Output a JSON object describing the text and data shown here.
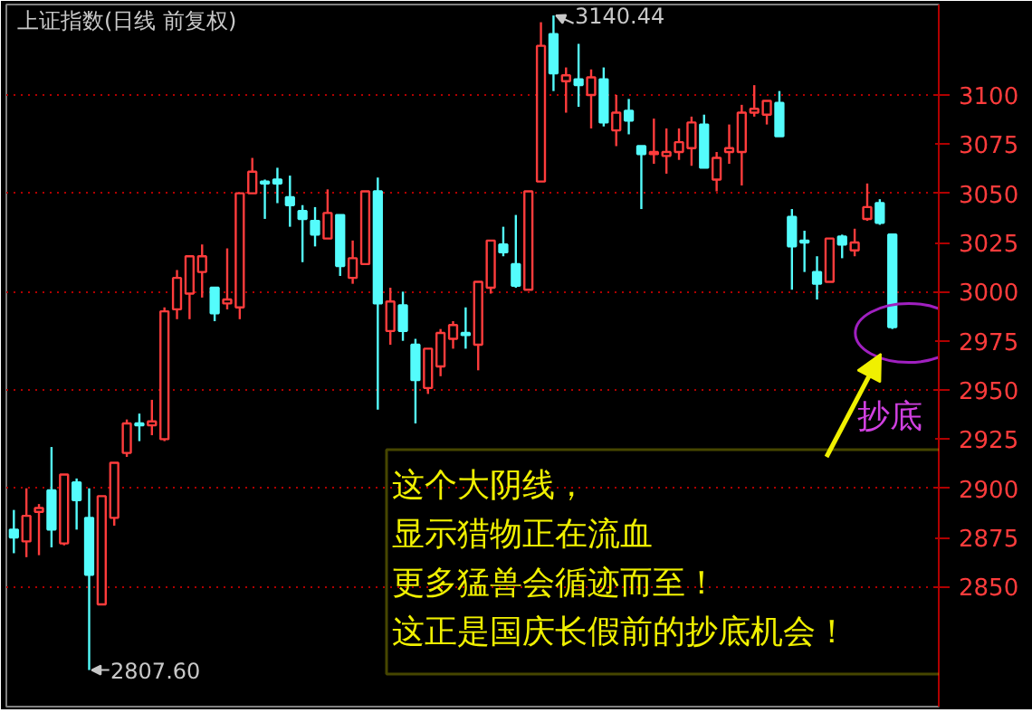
{
  "chart_data": {
    "type": "candlestick",
    "title": "上证指数(日线 前复权)",
    "categories": [
      null,
      null,
      null,
      null,
      null,
      null,
      null,
      null,
      null,
      null,
      null,
      null,
      null,
      null,
      null,
      null,
      null,
      null,
      null,
      null,
      null,
      null,
      null,
      null,
      null,
      null,
      null,
      null,
      null,
      null,
      null,
      null,
      null,
      null,
      null,
      null,
      null,
      null,
      null,
      null,
      null,
      null,
      null,
      null,
      null,
      null,
      null,
      null,
      null,
      null,
      null,
      null,
      null,
      null,
      null,
      null,
      null,
      null,
      null,
      null,
      null,
      null,
      null,
      null,
      null,
      null,
      null,
      null,
      null,
      null,
      null
    ],
    "ohlc": [
      [
        2879,
        2889,
        2867,
        2875
      ],
      [
        2873,
        2900,
        2865,
        2886
      ],
      [
        2888,
        2892,
        2866,
        2890
      ],
      [
        2899,
        2921,
        2870,
        2879
      ],
      [
        2872,
        2907,
        2871,
        2907
      ],
      [
        2903,
        2905,
        2879,
        2894
      ],
      [
        2885,
        2900,
        2807.6,
        2856
      ],
      [
        2841,
        2896,
        2841,
        2896
      ],
      [
        2885,
        2913,
        2881,
        2913
      ],
      [
        2918,
        2935,
        2916,
        2933
      ],
      [
        2933,
        2938,
        2924,
        2932
      ],
      [
        2932,
        2945,
        2927,
        2934
      ],
      [
        2925,
        2992,
        2924,
        2990
      ],
      [
        2991,
        3011,
        2986,
        3007
      ],
      [
        2999,
        3018,
        2986,
        3018
      ],
      [
        3010,
        3024,
        2997,
        3018
      ],
      [
        3002,
        3002,
        2985,
        2989
      ],
      [
        2994,
        3022,
        2991,
        2996
      ],
      [
        2992,
        3050,
        2986,
        3050
      ],
      [
        3050,
        3068,
        3050,
        3061
      ],
      [
        3056,
        3057,
        3037,
        3055
      ],
      [
        3057,
        3063,
        3045,
        3055
      ],
      [
        3048,
        3059,
        3033,
        3044
      ],
      [
        3041,
        3044,
        3015,
        3037
      ],
      [
        3036,
        3043,
        3023,
        3029
      ],
      [
        3027,
        3052,
        3027,
        3040
      ],
      [
        3039,
        3039,
        3008,
        3013
      ],
      [
        3007,
        3026,
        3004,
        3017
      ],
      [
        3014,
        3051,
        3014,
        3051
      ],
      [
        3051,
        3058,
        2940,
        2994
      ],
      [
        2980,
        3002,
        2973,
        2995
      ],
      [
        2993,
        3000,
        2975,
        2980
      ],
      [
        2973,
        2976,
        2933,
        2955
      ],
      [
        2951,
        2971,
        2948,
        2971
      ],
      [
        2962,
        2981,
        2957,
        2979
      ],
      [
        2976,
        2985,
        2971,
        2983
      ],
      [
        2979,
        2992,
        2971,
        2978
      ],
      [
        2973,
        3005,
        2960,
        3005
      ],
      [
        3002,
        3026,
        2999,
        3026
      ],
      [
        3024,
        3033,
        3018,
        3020
      ],
      [
        3014,
        3039,
        3002,
        3003
      ],
      [
        3001,
        3051,
        3001,
        3051
      ],
      [
        3056,
        3137,
        3056,
        3125
      ],
      [
        3131,
        3140.44,
        3102,
        3111
      ],
      [
        3107,
        3114,
        3091,
        3110
      ],
      [
        3108,
        3126,
        3094,
        3105
      ],
      [
        3100,
        3113,
        3083,
        3109
      ],
      [
        3108,
        3114,
        3084,
        3086
      ],
      [
        3082,
        3100,
        3074,
        3091
      ],
      [
        3092,
        3098,
        3080,
        3087
      ],
      [
        3074,
        3074,
        3042,
        3070
      ],
      [
        3070,
        3088,
        3065,
        3071
      ],
      [
        3069,
        3083,
        3060,
        3071
      ],
      [
        3071,
        3083,
        3067,
        3076
      ],
      [
        3073,
        3089,
        3064,
        3086
      ],
      [
        3085,
        3090,
        3063,
        3063
      ],
      [
        3057,
        3071,
        3051,
        3068
      ],
      [
        3071,
        3085,
        3065,
        3073
      ],
      [
        3071,
        3095,
        3054,
        3091
      ],
      [
        3091,
        3105,
        3089,
        3093
      ],
      [
        3090,
        3097,
        3085,
        3097
      ],
      [
        3096,
        3102,
        3079,
        3079
      ],
      [
        3038,
        3042,
        3001,
        3023
      ],
      [
        3026,
        3031,
        3010,
        3025
      ],
      [
        3010,
        3018,
        2996,
        3004
      ],
      [
        3005,
        3027,
        3005,
        3027
      ],
      [
        3028,
        3029,
        3017,
        3024
      ],
      [
        3021,
        3032,
        3018,
        3025
      ],
      [
        3037,
        3055,
        3036,
        3043
      ],
      [
        3045,
        3047,
        3034,
        3035
      ],
      [
        3029,
        3029,
        2981,
        2982
      ]
    ],
    "ylim": [
      2789,
      3146
    ],
    "yticks": [
      2850,
      2875,
      2900,
      2925,
      2950,
      2975,
      3000,
      3025,
      3050,
      3075,
      3100
    ],
    "grid": "y",
    "annotations": [
      "3140.44",
      "2807.60",
      "这个大阴线，",
      "显示猎物正在流血",
      "更多猛兽会循迹而至！",
      "这正是国庆长假前的抄底机会！",
      "抄底"
    ]
  }
}
